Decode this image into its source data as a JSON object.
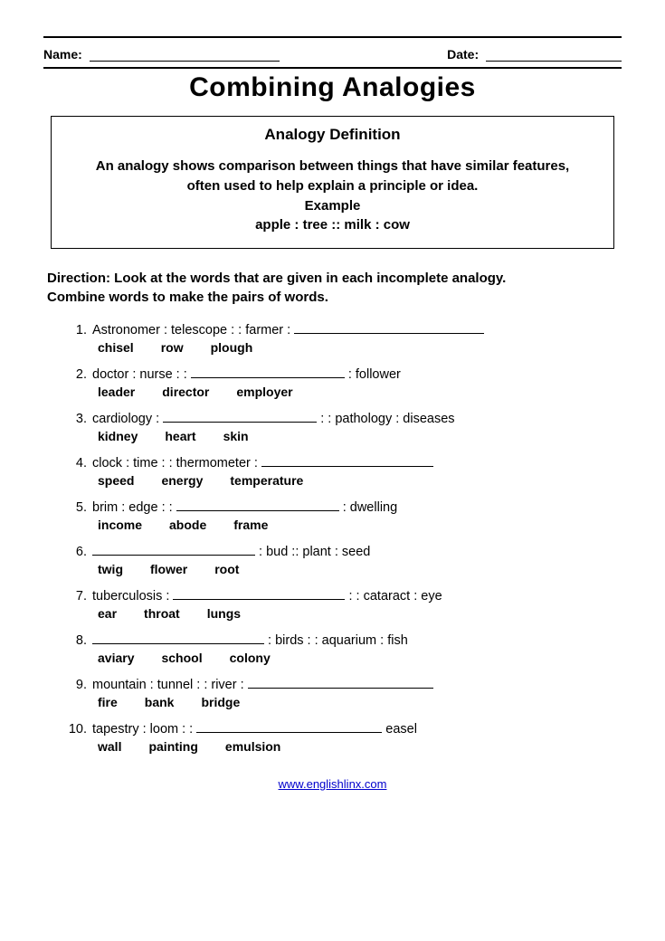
{
  "header": {
    "name_label": "Name:",
    "date_label": "Date:"
  },
  "title": "Combining Analogies",
  "definition": {
    "heading": "Analogy Definition",
    "line1": "An analogy shows comparison between things that have similar features,",
    "line2": "often used to help explain a principle or idea.",
    "example_label": "Example",
    "example_text": "apple : tree ::  milk :  cow"
  },
  "directions": {
    "line1": "Direction: Look at the words that are given in each incomplete analogy.",
    "line2": "Combine words to make the pairs of words."
  },
  "questions": [
    {
      "num": "1.",
      "before": "Astronomer : telescope : :  farmer : ",
      "after": "",
      "blank_w": 210,
      "opts": [
        "chisel",
        "row",
        "plough"
      ]
    },
    {
      "num": "2.",
      "before": "doctor : nurse : :  ",
      "after": " : follower",
      "blank_w": 170,
      "opts": [
        "leader",
        "director",
        "employer"
      ]
    },
    {
      "num": "3.",
      "before": "cardiology : ",
      "after": "  : :  pathology  : diseases",
      "blank_w": 170,
      "opts": [
        "kidney",
        "heart",
        "skin"
      ]
    },
    {
      "num": "4.",
      "before": "clock :  time : :  thermometer : ",
      "after": "",
      "blank_w": 190,
      "opts": [
        "speed",
        "energy",
        "temperature"
      ]
    },
    {
      "num": "5.",
      "before": "brim : edge : : ",
      "after": " : dwelling",
      "blank_w": 180,
      "opts": [
        "income",
        "abode",
        "frame"
      ]
    },
    {
      "num": "6.",
      "before": "",
      "after": " : bud :: plant : seed",
      "blank_w": 180,
      "opts": [
        "twig",
        "flower",
        "root"
      ]
    },
    {
      "num": "7.",
      "before": "tuberculosis :  ",
      "after": " : : cataract : eye",
      "blank_w": 190,
      "opts": [
        "ear",
        "throat",
        "lungs"
      ]
    },
    {
      "num": "8.",
      "before": "",
      "after": " :  birds : : aquarium : fish",
      "blank_w": 190,
      "opts": [
        "aviary",
        "school",
        "colony"
      ]
    },
    {
      "num": "9.",
      "before": "mountain :  tunnel  : :  river : ",
      "after": "",
      "blank_w": 205,
      "opts": [
        "fire",
        "bank",
        "bridge"
      ]
    },
    {
      "num": "10.",
      "before": "tapestry : loom  : :  ",
      "after": " easel",
      "blank_w": 205,
      "opts": [
        "wall",
        "painting",
        "emulsion"
      ]
    }
  ],
  "footer_link": "www.englishlinx.com"
}
